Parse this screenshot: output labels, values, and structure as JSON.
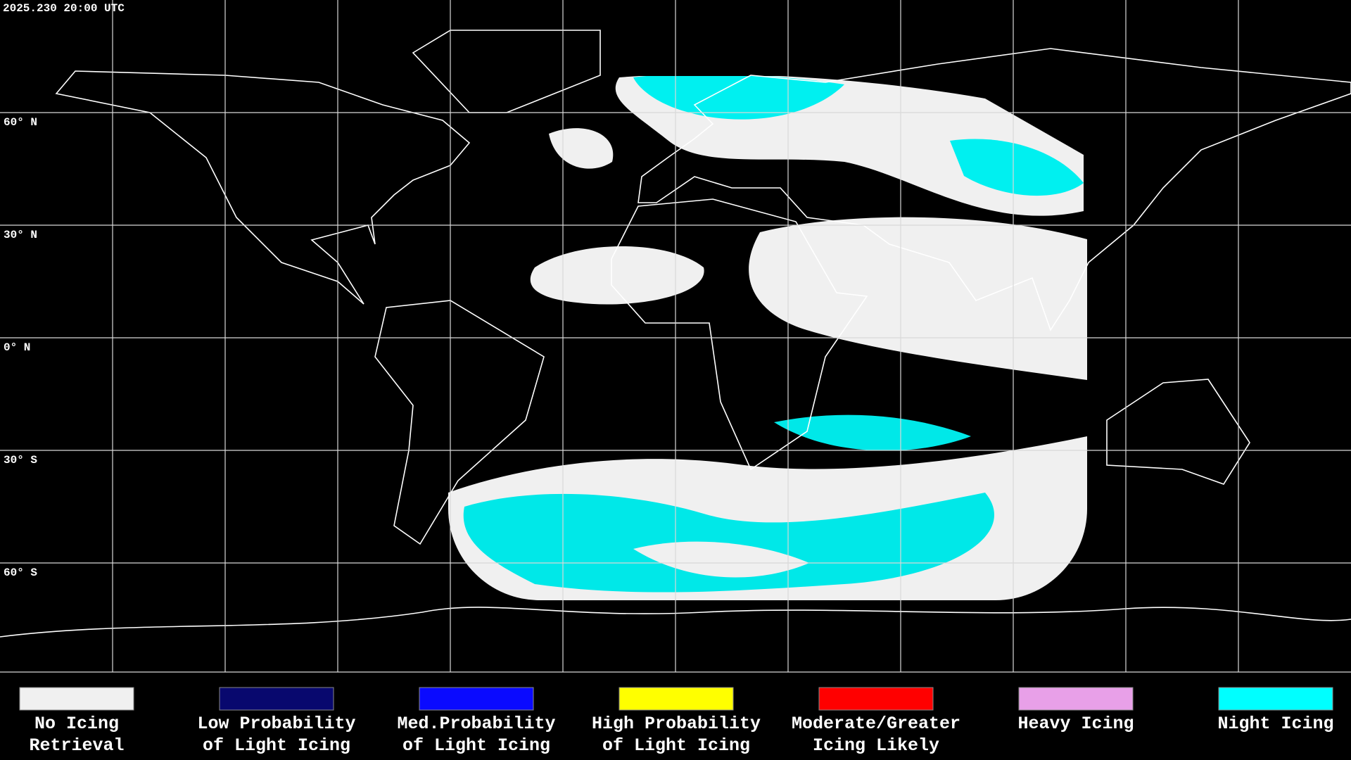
{
  "header": {
    "timestamp": "2025.230 20:00 UTC"
  },
  "map": {
    "latitude_labels": [
      "60° N",
      "30° N",
      "0° N",
      "30° S",
      "60° S"
    ]
  },
  "legend": {
    "items": [
      {
        "label": [
          "No Icing",
          "Retrieval"
        ],
        "color": "#f0f0f0"
      },
      {
        "label": [
          "Low Probability",
          "of Light Icing"
        ],
        "color": "#08086e"
      },
      {
        "label": [
          "Med.Probability",
          "of Light Icing"
        ],
        "color": "#0a0aff"
      },
      {
        "label": [
          "High Probability",
          "of Light Icing"
        ],
        "color": "#ffff00"
      },
      {
        "label": [
          "Moderate/Greater",
          "Icing Likely"
        ],
        "color": "#ff0000"
      },
      {
        "label": [
          "Heavy Icing"
        ],
        "color": "#e8a0e8"
      },
      {
        "label": [
          "Night Icing"
        ],
        "color": "#00ffff"
      }
    ]
  }
}
